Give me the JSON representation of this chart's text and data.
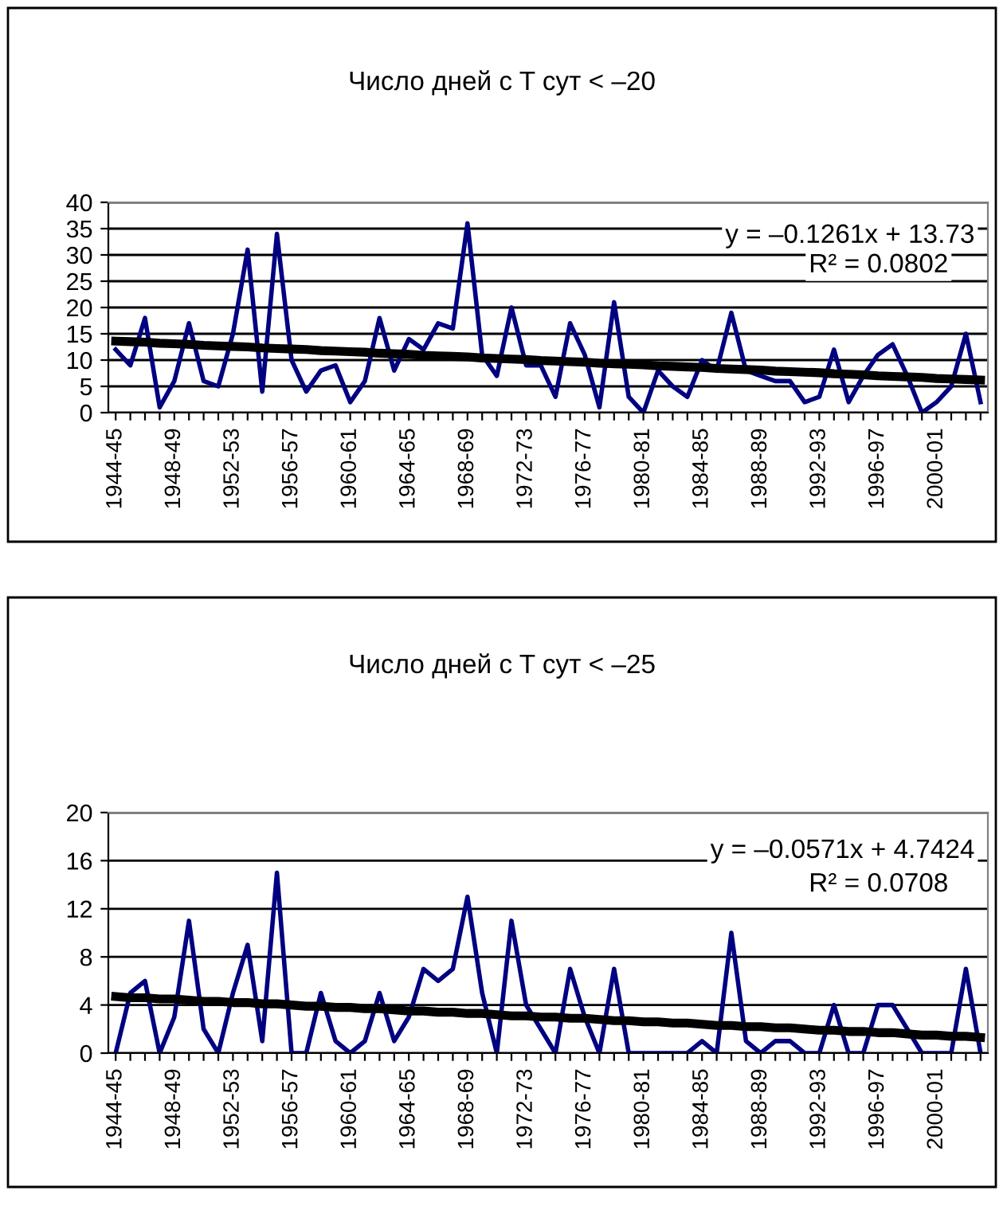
{
  "chart_data": [
    {
      "type": "line",
      "title": "Число дней с T сут < –20",
      "categories": [
        "1944-45",
        null,
        null,
        null,
        "1948-49",
        null,
        null,
        null,
        "1952-53",
        null,
        null,
        null,
        "1956-57",
        null,
        null,
        null,
        "1960-61",
        null,
        null,
        null,
        "1964-65",
        null,
        null,
        null,
        "1968-69",
        null,
        null,
        null,
        "1972-73",
        null,
        null,
        null,
        "1976-77",
        null,
        null,
        null,
        "1980-81",
        null,
        null,
        null,
        "1984-85",
        null,
        null,
        null,
        "1988-89",
        null,
        null,
        null,
        "1992-93",
        null,
        null,
        null,
        "1996-97",
        null,
        null,
        null,
        "2000-01",
        null,
        null,
        null
      ],
      "series": [
        {
          "color": "#000080",
          "values": [
            12,
            9,
            18,
            1,
            6,
            17,
            6,
            5,
            15,
            31,
            4,
            34,
            10,
            4,
            8,
            9,
            2,
            6,
            18,
            8,
            14,
            12,
            17,
            16,
            36,
            11,
            7,
            20,
            9,
            9,
            3,
            17,
            11,
            1,
            21,
            3,
            0,
            8,
            5,
            3,
            10,
            8,
            19,
            8,
            7,
            6,
            6,
            2,
            3,
            12,
            2,
            7,
            11,
            13,
            7,
            0,
            2,
            5,
            15,
            2
          ]
        },
        {
          "color": "#000000",
          "values": [
            13.6,
            13.5,
            13.4,
            13.2,
            13.1,
            13.0,
            12.8,
            12.7,
            12.6,
            12.5,
            12.3,
            12.2,
            12.1,
            12.0,
            11.8,
            11.7,
            11.6,
            11.5,
            11.3,
            11.2,
            11.1,
            10.9,
            10.8,
            10.7,
            10.6,
            10.4,
            10.3,
            10.2,
            10.1,
            9.9,
            9.8,
            9.7,
            9.6,
            9.4,
            9.3,
            9.2,
            9.1,
            8.9,
            8.8,
            8.7,
            8.6,
            8.4,
            8.3,
            8.2,
            8.1,
            7.9,
            7.8,
            7.7,
            7.6,
            7.4,
            7.3,
            7.2,
            7.0,
            6.9,
            6.8,
            6.7,
            6.5,
            6.4,
            6.3,
            6.2
          ]
        }
      ],
      "ylim": [
        0,
        40
      ],
      "yticks": [
        0,
        5,
        10,
        15,
        20,
        25,
        30,
        35,
        40
      ],
      "grid": "y",
      "marker": "none",
      "line_style": "solid",
      "legend": false,
      "annotations": [
        "y = –0.1261x + 13.73",
        "R² = 0.0802"
      ]
    },
    {
      "type": "line",
      "title": "Число дней с T сут < –25",
      "categories": [
        "1944-45",
        null,
        null,
        null,
        "1948-49",
        null,
        null,
        null,
        "1952-53",
        null,
        null,
        null,
        "1956-57",
        null,
        null,
        null,
        "1960-61",
        null,
        null,
        null,
        "1964-65",
        null,
        null,
        null,
        "1968-69",
        null,
        null,
        null,
        "1972-73",
        null,
        null,
        null,
        "1976-77",
        null,
        null,
        null,
        "1980-81",
        null,
        null,
        null,
        "1984-85",
        null,
        null,
        null,
        "1988-89",
        null,
        null,
        null,
        "1992-93",
        null,
        null,
        null,
        "1996-97",
        null,
        null,
        null,
        "2000-01",
        null,
        null,
        null
      ],
      "series": [
        {
          "color": "#000080",
          "values": [
            0,
            5,
            6,
            0,
            3,
            11,
            2,
            0,
            5,
            9,
            1,
            15,
            0,
            0,
            5,
            1,
            0,
            1,
            5,
            1,
            3,
            7,
            6,
            7,
            13,
            5,
            0,
            11,
            4,
            2,
            0,
            7,
            3,
            0,
            7,
            0,
            0,
            0,
            0,
            0,
            1,
            0,
            10,
            1,
            0,
            1,
            1,
            0,
            0,
            4,
            0,
            0,
            4,
            4,
            2,
            0,
            0,
            0,
            7,
            0
          ]
        },
        {
          "color": "#000000",
          "values": [
            4.7,
            4.6,
            4.6,
            4.5,
            4.5,
            4.4,
            4.3,
            4.3,
            4.2,
            4.2,
            4.1,
            4.1,
            4.0,
            3.9,
            3.9,
            3.8,
            3.8,
            3.7,
            3.7,
            3.6,
            3.5,
            3.5,
            3.4,
            3.4,
            3.3,
            3.3,
            3.2,
            3.1,
            3.1,
            3.0,
            3.0,
            2.9,
            2.9,
            2.8,
            2.7,
            2.7,
            2.6,
            2.6,
            2.5,
            2.5,
            2.4,
            2.3,
            2.3,
            2.2,
            2.2,
            2.1,
            2.1,
            2.0,
            1.9,
            1.9,
            1.8,
            1.8,
            1.7,
            1.7,
            1.6,
            1.5,
            1.5,
            1.4,
            1.4,
            1.3
          ]
        }
      ],
      "ylim": [
        0,
        20
      ],
      "yticks": [
        0,
        4,
        8,
        12,
        16,
        20
      ],
      "grid": "y",
      "marker": "none",
      "line_style": "solid",
      "legend": false,
      "annotations": [
        "y = –0.0571x + 4.7424",
        "R² = 0.0708"
      ]
    }
  ]
}
